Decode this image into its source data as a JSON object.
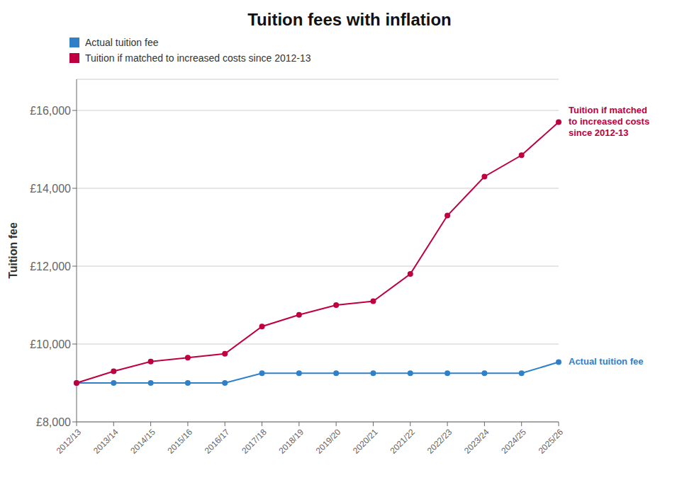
{
  "chart_data": {
    "type": "line",
    "title": "Tuition fees with inflation",
    "y_label": "Tuition fee",
    "categories": [
      "2012/13",
      "2013/14",
      "2014/15",
      "2015/16",
      "2016/17",
      "2017/18",
      "2018/19",
      "2019/20",
      "2020/21",
      "2021/22",
      "2022/23",
      "2023/24",
      "2024/25",
      "2025/26"
    ],
    "series": [
      {
        "name": "Actual tuition fee",
        "color": "#3080c8",
        "marker": "circle",
        "values": [
          9000,
          9000,
          9000,
          9000,
          9000,
          9250,
          9250,
          9250,
          9250,
          9250,
          9250,
          9250,
          9250,
          9535
        ]
      },
      {
        "name": "Tuition if matched to increased costs since 2012-13",
        "color": "#be0040",
        "marker": "circle",
        "values": [
          9000,
          9300,
          9550,
          9650,
          9750,
          10450,
          10750,
          11000,
          11100,
          11800,
          13300,
          14300,
          14850,
          15700
        ]
      }
    ],
    "ylim": [
      8000,
      16800
    ],
    "yticks": [
      {
        "value": 8000,
        "label": "£8,000"
      },
      {
        "value": 10000,
        "label": "£10,000"
      },
      {
        "value": 12000,
        "label": "£12,000"
      },
      {
        "value": 14000,
        "label": "£14,000"
      },
      {
        "value": 16000,
        "label": "£16,000"
      }
    ],
    "grid": true,
    "legend": "upper left",
    "annotations": [
      {
        "text": "Actual tuition fee",
        "color": "#3080c8"
      },
      {
        "text": "Tuition if matched\nto increased costs\nsince 2012-13",
        "color": "#be0040"
      }
    ]
  }
}
